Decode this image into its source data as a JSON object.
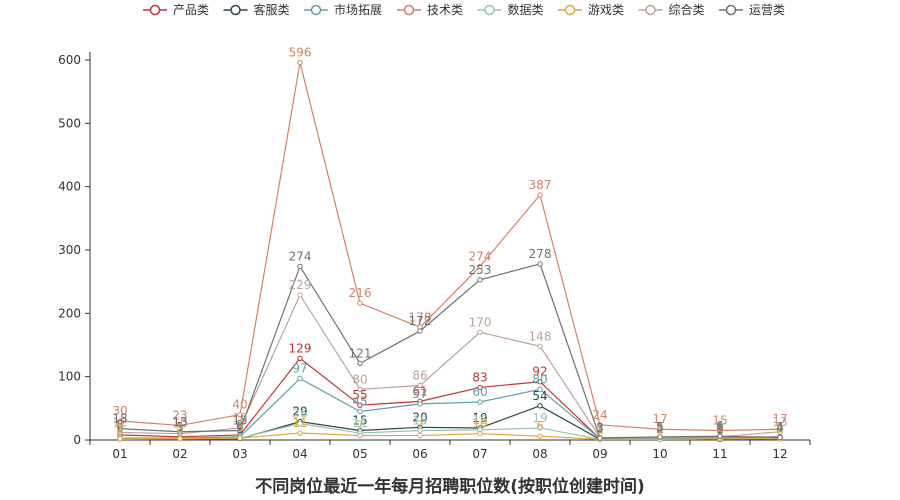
{
  "chart_data": {
    "type": "line",
    "title": "不同岗位最近一年每月招聘职位数(按职位创建时间)",
    "xlabel": "",
    "ylabel": "",
    "categories": [
      "01",
      "02",
      "03",
      "04",
      "05",
      "06",
      "07",
      "08",
      "09",
      "10",
      "11",
      "12"
    ],
    "ylim": [
      0,
      600
    ],
    "yticks": [
      0,
      100,
      200,
      300,
      400,
      500,
      600
    ],
    "legend_position": "top",
    "series": [
      {
        "name": "产品类",
        "color": "#c23531",
        "values": [
          8,
          5,
          8,
          129,
          55,
          61,
          83,
          92,
          2,
          2,
          3,
          5
        ]
      },
      {
        "name": "客服类",
        "color": "#2f4554",
        "values": [
          2,
          2,
          2,
          29,
          15,
          20,
          19,
          54,
          1,
          1,
          1,
          2
        ]
      },
      {
        "name": "市场拓展",
        "color": "#61a0a8",
        "values": [
          3,
          3,
          5,
          97,
          45,
          57,
          60,
          80,
          2,
          3,
          4,
          5
        ]
      },
      {
        "name": "技术类",
        "color": "#d48265",
        "values": [
          30,
          23,
          40,
          596,
          216,
          178,
          274,
          387,
          24,
          17,
          15,
          17
        ]
      },
      {
        "name": "数据类",
        "color": "#91c7ae",
        "values": [
          1,
          2,
          3,
          26,
          11,
          15,
          16,
          19,
          1,
          1,
          2,
          3
        ]
      },
      {
        "name": "游戏类",
        "color": "#e6a33a",
        "values": [
          2,
          2,
          3,
          11,
          7,
          7,
          10,
          6,
          1,
          1,
          2,
          2
        ]
      },
      {
        "name": "综合类",
        "color": "#ca8622",
        "color_display": "#bda29a",
        "values": [
          12,
          10,
          19,
          229,
          80,
          86,
          170,
          148,
          4,
          4,
          5,
          13
        ]
      },
      {
        "name": "运营类",
        "color": "#6e7074",
        "values": [
          18,
          13,
          15,
          274,
          121,
          172,
          253,
          278,
          3,
          5,
          6,
          4
        ]
      }
    ]
  }
}
